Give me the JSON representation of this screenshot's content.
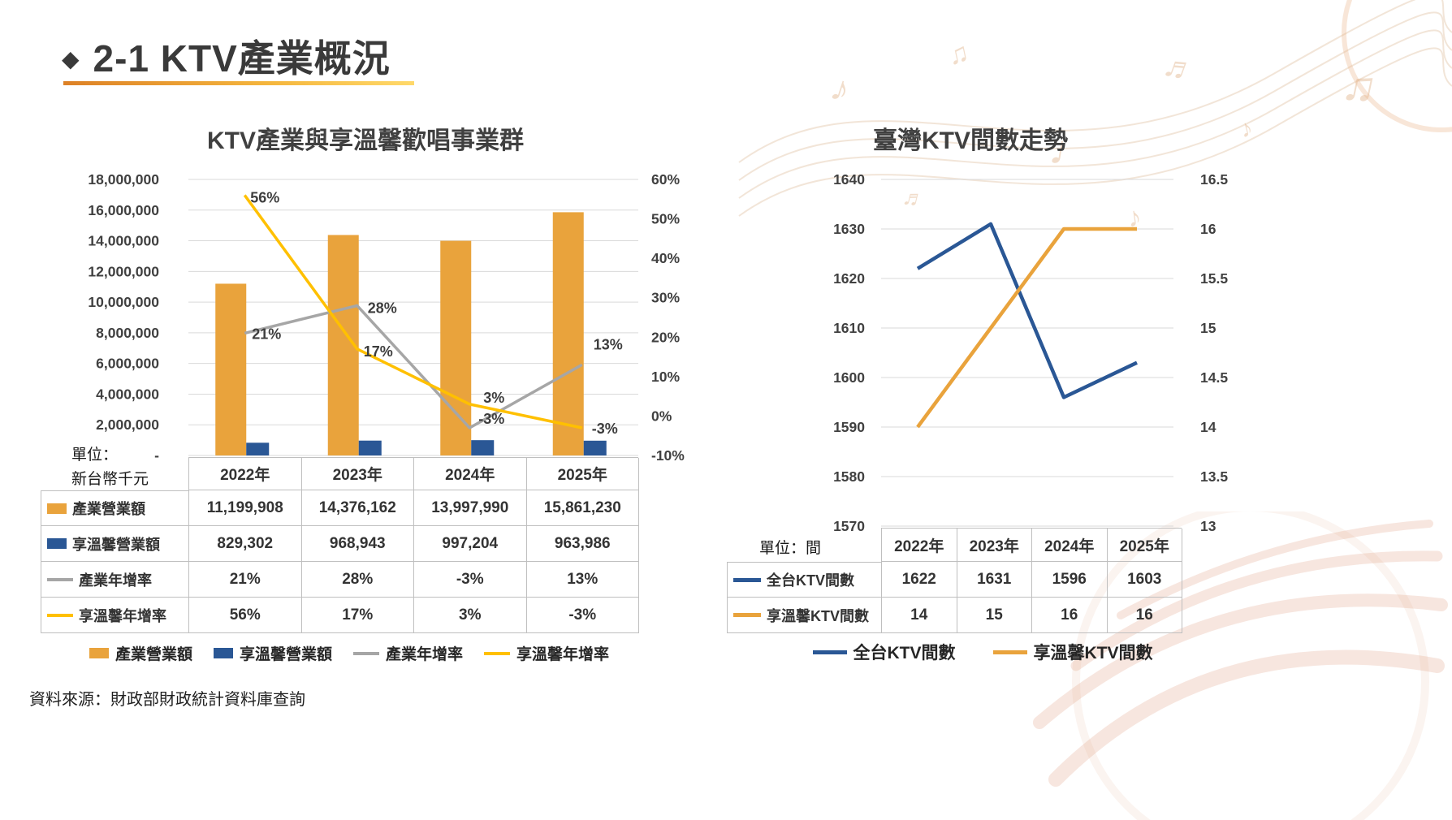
{
  "slide": {
    "bullet": "◆",
    "title": "2-1 KTV產業概況",
    "underline_colors": [
      "#DD8126",
      "#FFD96A"
    ],
    "source": "資料來源：財政部財政統計資料庫查詢"
  },
  "left_chart": {
    "title": "KTV產業與享溫馨歡唱事業群",
    "unit_line1": "單位：",
    "unit_line2": "新台幣千元",
    "years": [
      "2022年",
      "2023年",
      "2024年",
      "2025年"
    ],
    "table": {
      "rows": [
        {
          "label": "產業營業額",
          "values": [
            "11,199,908",
            "14,376,162",
            "13,997,990",
            "15,861,230"
          ]
        },
        {
          "label": "享溫馨營業額",
          "values": [
            "829,302",
            "968,943",
            "997,204",
            "963,986"
          ]
        },
        {
          "label": "產業年增率",
          "values": [
            "21%",
            "28%",
            "-3%",
            "13%"
          ]
        },
        {
          "label": "享溫馨年增率",
          "values": [
            "56%",
            "17%",
            "3%",
            "-3%"
          ]
        }
      ]
    },
    "legend": [
      "產業營業額",
      "享溫馨營業額",
      "產業年增率",
      "享溫馨年增率"
    ]
  },
  "right_chart": {
    "title": "臺灣KTV間數走勢",
    "unit": "單位：間",
    "years": [
      "2022年",
      "2023年",
      "2024年",
      "2025年"
    ],
    "table": {
      "rows": [
        {
          "label": "全台KTV間數",
          "values": [
            "1622",
            "1631",
            "1596",
            "1603"
          ]
        },
        {
          "label": "享溫馨KTV間數",
          "values": [
            "14",
            "15",
            "16",
            "16"
          ]
        }
      ]
    },
    "legend": [
      "全台KTV間數",
      "享溫馨KTV間數"
    ]
  },
  "chart_data": [
    {
      "type": "bar",
      "subtype": "combo-bar-line",
      "title": "KTV產業與享溫馨歡唱事業群",
      "categories": [
        "2022年",
        "2023年",
        "2024年",
        "2025年"
      ],
      "series": [
        {
          "name": "產業營業額",
          "type": "bar",
          "axis": "left",
          "color": "#E9A33C",
          "values": [
            11199908,
            14376162,
            13997990,
            15861230
          ]
        },
        {
          "name": "享溫馨營業額",
          "type": "bar",
          "axis": "left",
          "color": "#2A5795",
          "values": [
            829302,
            968943,
            997204,
            963986
          ]
        },
        {
          "name": "產業年增率",
          "type": "line",
          "axis": "right",
          "color": "#A6A6A6",
          "values": [
            21,
            28,
            -3,
            13
          ]
        },
        {
          "name": "享溫馨年增率",
          "type": "line",
          "axis": "right",
          "color": "#FFC000",
          "values": [
            56,
            17,
            3,
            -3
          ]
        }
      ],
      "left_axis": {
        "min": 0,
        "max": 18000000,
        "step": 2000000,
        "zero_label": "-"
      },
      "right_axis": {
        "min": -10,
        "max": 60,
        "step": 10,
        "suffix": "%"
      },
      "grid": true,
      "legend_position": "bottom"
    },
    {
      "type": "line",
      "title": "臺灣KTV間數走勢",
      "categories": [
        "2022年",
        "2023年",
        "2024年",
        "2025年"
      ],
      "series": [
        {
          "name": "全台KTV間數",
          "axis": "left",
          "color": "#2A5795",
          "values": [
            1622,
            1631,
            1596,
            1603
          ]
        },
        {
          "name": "享溫馨KTV間數",
          "axis": "right",
          "color": "#E9A33C",
          "values": [
            14,
            15,
            16,
            16
          ]
        }
      ],
      "left_axis": {
        "min": 1570,
        "max": 1640,
        "step": 10
      },
      "right_axis": {
        "min": 13,
        "max": 16.5,
        "step": 0.5
      },
      "grid": true,
      "legend_position": "bottom"
    }
  ]
}
